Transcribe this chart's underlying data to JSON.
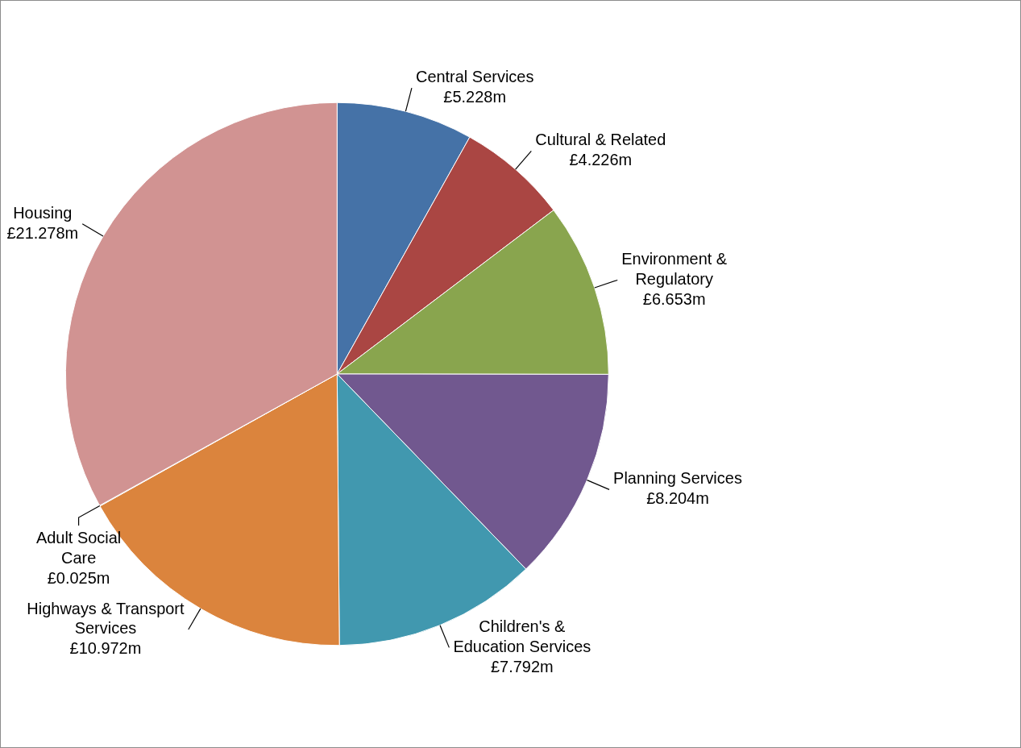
{
  "chart_data": {
    "type": "pie",
    "categories": [
      "Central Services",
      "Cultural & Related",
      "Environment & Regulatory",
      "Planning Services",
      "Children's & Education Services",
      "Highways & Transport Services",
      "Adult Social Care",
      "Housing"
    ],
    "values": [
      5.228,
      4.226,
      6.653,
      8.204,
      7.792,
      10.972,
      0.025,
      21.278
    ],
    "value_labels": [
      "£5.228m",
      "£4.226m",
      "£6.653m",
      "£8.204m",
      "£7.792m",
      "£10.972m",
      "£0.025m",
      "£21.278m"
    ],
    "colors": [
      "#4572a7",
      "#aa4643",
      "#89a54e",
      "#71588f",
      "#4198af",
      "#db843d",
      "#93a9cf",
      "#d19392"
    ],
    "legend": false
  }
}
